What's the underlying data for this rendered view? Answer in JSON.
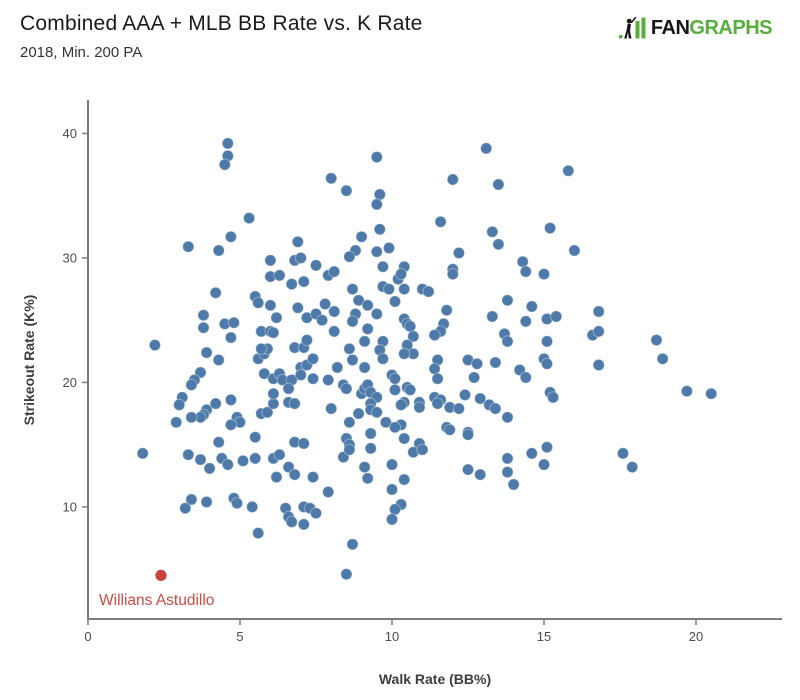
{
  "chart_data": {
    "type": "scatter",
    "title": "Combined AAA + MLB BB Rate vs. K Rate",
    "subtitle": "2018, Min. 200 PA",
    "xlabel": "Walk Rate (BB%)",
    "ylabel": "Strikeout Rate (K%)",
    "xlim": [
      0,
      22.8
    ],
    "ylim": [
      1,
      42.7
    ],
    "x_ticks": [
      0,
      5,
      10,
      15,
      20
    ],
    "y_ticks": [
      10,
      20,
      30,
      40
    ],
    "grid": false,
    "legend": "none",
    "point_color": "#4d7aa8",
    "point_edge": "rgba(255,255,255,0.35)",
    "axis_color": "#7d7d7d",
    "tick_label_color": "#4d4d4d",
    "highlight": {
      "label": "Willians Astudillo",
      "x": 2.4,
      "y": 4.5,
      "color": "#c8413a",
      "label_color": "#cd4b45"
    },
    "points": [
      [
        4.6,
        39.2
      ],
      [
        4.6,
        38.2
      ],
      [
        4.5,
        37.5
      ],
      [
        5.3,
        33.2
      ],
      [
        4.7,
        31.7
      ],
      [
        3.3,
        30.9
      ],
      [
        4.3,
        30.6
      ],
      [
        6.9,
        31.3
      ],
      [
        6.0,
        29.8
      ],
      [
        6.8,
        29.8
      ],
      [
        7.0,
        30.0
      ],
      [
        13.1,
        38.8
      ],
      [
        9.5,
        38.1
      ],
      [
        8.0,
        36.4
      ],
      [
        8.5,
        35.4
      ],
      [
        12.0,
        36.3
      ],
      [
        13.5,
        35.9
      ],
      [
        9.6,
        35.1
      ],
      [
        9.5,
        34.3
      ],
      [
        11.6,
        32.9
      ],
      [
        9.6,
        32.3
      ],
      [
        9.0,
        31.7
      ],
      [
        13.3,
        32.1
      ],
      [
        13.5,
        31.1
      ],
      [
        8.8,
        30.6
      ],
      [
        8.6,
        30.1
      ],
      [
        9.5,
        30.5
      ],
      [
        9.9,
        30.8
      ],
      [
        7.5,
        29.4
      ],
      [
        12.2,
        30.4
      ],
      [
        14.3,
        29.7
      ],
      [
        9.7,
        29.3
      ],
      [
        10.4,
        29.3
      ],
      [
        12.0,
        29.1
      ],
      [
        15.8,
        37.0
      ],
      [
        15.2,
        32.4
      ],
      [
        16.0,
        30.6
      ],
      [
        4.2,
        27.2
      ],
      [
        5.5,
        26.9
      ],
      [
        5.6,
        26.4
      ],
      [
        6.0,
        28.5
      ],
      [
        6.3,
        28.6
      ],
      [
        6.7,
        27.9
      ],
      [
        7.1,
        28.1
      ],
      [
        6.0,
        26.2
      ],
      [
        6.9,
        26.0
      ],
      [
        7.2,
        25.2
      ],
      [
        3.8,
        25.4
      ],
      [
        3.8,
        24.4
      ],
      [
        4.5,
        24.7
      ],
      [
        4.8,
        24.8
      ],
      [
        4.7,
        23.6
      ],
      [
        2.2,
        23.0
      ],
      [
        3.9,
        22.4
      ],
      [
        4.3,
        21.8
      ],
      [
        3.7,
        20.8
      ],
      [
        3.5,
        20.2
      ],
      [
        3.4,
        19.8
      ],
      [
        3.1,
        18.8
      ],
      [
        3.0,
        18.2
      ],
      [
        3.9,
        17.8
      ],
      [
        3.8,
        17.4
      ],
      [
        4.2,
        18.3
      ],
      [
        3.7,
        17.2
      ],
      [
        3.4,
        17.2
      ],
      [
        2.9,
        16.8
      ],
      [
        4.7,
        18.6
      ],
      [
        4.9,
        17.2
      ],
      [
        5.0,
        16.8
      ],
      [
        4.7,
        16.6
      ],
      [
        5.7,
        17.5
      ],
      [
        5.9,
        17.6
      ],
      [
        6.1,
        18.3
      ],
      [
        6.6,
        18.4
      ],
      [
        6.8,
        18.3
      ],
      [
        5.8,
        20.7
      ],
      [
        6.1,
        20.3
      ],
      [
        6.3,
        20.7
      ],
      [
        6.4,
        20.2
      ],
      [
        6.7,
        20.2
      ],
      [
        7.0,
        21.2
      ],
      [
        7.2,
        21.4
      ],
      [
        7.0,
        20.6
      ],
      [
        6.1,
        19.1
      ],
      [
        6.6,
        19.5
      ],
      [
        5.6,
        21.9
      ],
      [
        5.8,
        22.3
      ],
      [
        5.9,
        22.7
      ],
      [
        5.7,
        22.7
      ],
      [
        5.7,
        24.1
      ],
      [
        6.0,
        24.1
      ],
      [
        6.1,
        24.0
      ],
      [
        6.2,
        25.2
      ],
      [
        6.8,
        22.8
      ],
      [
        7.1,
        22.8
      ],
      [
        7.2,
        23.4
      ],
      [
        7.4,
        21.9
      ],
      [
        7.4,
        20.3
      ],
      [
        5.5,
        15.6
      ],
      [
        4.3,
        15.2
      ],
      [
        7.9,
        28.6
      ],
      [
        8.1,
        28.9
      ],
      [
        10.2,
        28.3
      ],
      [
        10.3,
        28.7
      ],
      [
        12.0,
        28.7
      ],
      [
        14.4,
        28.9
      ],
      [
        15.0,
        28.7
      ],
      [
        8.7,
        27.5
      ],
      [
        9.7,
        27.7
      ],
      [
        9.9,
        27.5
      ],
      [
        10.4,
        27.5
      ],
      [
        11.0,
        27.5
      ],
      [
        11.2,
        27.3
      ],
      [
        7.8,
        26.3
      ],
      [
        7.5,
        25.5
      ],
      [
        8.1,
        25.7
      ],
      [
        8.9,
        26.6
      ],
      [
        9.2,
        26.2
      ],
      [
        9.5,
        25.5
      ],
      [
        10.1,
        26.5
      ],
      [
        8.8,
        25.5
      ],
      [
        13.8,
        26.6
      ],
      [
        14.6,
        26.1
      ],
      [
        13.3,
        25.3
      ],
      [
        14.4,
        24.9
      ],
      [
        7.7,
        25.0
      ],
      [
        8.1,
        24.1
      ],
      [
        8.7,
        24.9
      ],
      [
        9.2,
        24.3
      ],
      [
        10.4,
        25.1
      ],
      [
        10.5,
        24.7
      ],
      [
        10.6,
        24.5
      ],
      [
        11.8,
        25.8
      ],
      [
        11.7,
        24.7
      ],
      [
        11.6,
        24.1
      ],
      [
        11.4,
        23.8
      ],
      [
        10.7,
        23.7
      ],
      [
        13.7,
        23.9
      ],
      [
        13.8,
        23.3
      ],
      [
        8.6,
        22.7
      ],
      [
        9.1,
        23.3
      ],
      [
        9.7,
        23.3
      ],
      [
        9.6,
        22.6
      ],
      [
        9.7,
        21.9
      ],
      [
        10.5,
        23.0
      ],
      [
        10.7,
        22.3
      ],
      [
        10.4,
        22.3
      ],
      [
        8.7,
        21.8
      ],
      [
        8.2,
        21.2
      ],
      [
        9.1,
        21.2
      ],
      [
        10.0,
        20.6
      ],
      [
        10.1,
        20.3
      ],
      [
        11.5,
        21.8
      ],
      [
        11.4,
        21.1
      ],
      [
        11.5,
        20.3
      ],
      [
        12.5,
        21.8
      ],
      [
        12.8,
        21.5
      ],
      [
        12.7,
        20.4
      ],
      [
        13.4,
        21.6
      ],
      [
        14.2,
        21.0
      ],
      [
        14.4,
        20.4
      ],
      [
        15.0,
        21.9
      ],
      [
        7.9,
        20.2
      ],
      [
        8.4,
        19.8
      ],
      [
        8.5,
        19.5
      ],
      [
        9.0,
        19.1
      ],
      [
        9.1,
        19.5
      ],
      [
        9.2,
        19.8
      ],
      [
        9.3,
        19.2
      ],
      [
        9.5,
        18.8
      ],
      [
        10.1,
        19.4
      ],
      [
        10.5,
        19.6
      ],
      [
        10.6,
        19.4
      ],
      [
        10.4,
        18.4
      ],
      [
        10.3,
        18.2
      ],
      [
        10.9,
        18.4
      ],
      [
        11.4,
        18.8
      ],
      [
        11.6,
        18.6
      ],
      [
        12.4,
        19.0
      ],
      [
        12.9,
        18.7
      ],
      [
        13.2,
        18.2
      ],
      [
        8.0,
        17.9
      ],
      [
        8.6,
        16.8
      ],
      [
        8.9,
        17.5
      ],
      [
        9.3,
        18.3
      ],
      [
        9.3,
        17.8
      ],
      [
        9.5,
        17.6
      ],
      [
        9.8,
        16.8
      ],
      [
        10.3,
        16.6
      ],
      [
        10.9,
        18.0
      ],
      [
        11.5,
        18.3
      ],
      [
        11.9,
        18.0
      ],
      [
        12.2,
        17.9
      ],
      [
        12.5,
        16.0
      ],
      [
        13.4,
        17.9
      ],
      [
        13.8,
        17.2
      ],
      [
        8.5,
        15.5
      ],
      [
        9.3,
        15.9
      ],
      [
        10.1,
        16.4
      ],
      [
        10.4,
        15.5
      ],
      [
        10.9,
        15.1
      ],
      [
        11.8,
        16.4
      ],
      [
        11.9,
        16.2
      ],
      [
        12.5,
        15.8
      ],
      [
        8.6,
        15.0
      ],
      [
        15.1,
        25.1
      ],
      [
        15.4,
        25.3
      ],
      [
        16.8,
        25.7
      ],
      [
        16.6,
        23.8
      ],
      [
        16.8,
        24.1
      ],
      [
        15.1,
        23.3
      ],
      [
        18.7,
        23.4
      ],
      [
        18.9,
        21.9
      ],
      [
        15.1,
        21.5
      ],
      [
        16.8,
        21.4
      ],
      [
        15.2,
        19.2
      ],
      [
        15.3,
        18.8
      ],
      [
        19.7,
        19.3
      ],
      [
        20.5,
        19.1
      ],
      [
        1.8,
        14.3
      ],
      [
        3.3,
        14.2
      ],
      [
        3.7,
        13.8
      ],
      [
        4.0,
        13.1
      ],
      [
        4.4,
        13.9
      ],
      [
        4.6,
        13.4
      ],
      [
        5.1,
        13.7
      ],
      [
        5.5,
        13.9
      ],
      [
        6.1,
        13.9
      ],
      [
        6.3,
        14.2
      ],
      [
        6.2,
        12.4
      ],
      [
        6.6,
        13.2
      ],
      [
        6.8,
        12.6
      ],
      [
        7.4,
        12.4
      ],
      [
        3.4,
        10.6
      ],
      [
        3.2,
        9.9
      ],
      [
        3.9,
        10.4
      ],
      [
        4.8,
        10.7
      ],
      [
        4.9,
        10.3
      ],
      [
        5.4,
        10.0
      ],
      [
        6.5,
        9.9
      ],
      [
        6.6,
        9.2
      ],
      [
        7.1,
        10.0
      ],
      [
        7.3,
        9.9
      ],
      [
        6.7,
        8.8
      ],
      [
        7.1,
        8.6
      ],
      [
        5.6,
        7.9
      ],
      [
        6.8,
        15.2
      ],
      [
        7.1,
        15.1
      ],
      [
        8.4,
        14.0
      ],
      [
        8.6,
        14.6
      ],
      [
        9.3,
        14.7
      ],
      [
        9.1,
        13.2
      ],
      [
        9.2,
        12.3
      ],
      [
        10.0,
        13.4
      ],
      [
        10.4,
        12.2
      ],
      [
        10.0,
        11.4
      ],
      [
        10.7,
        14.4
      ],
      [
        11.0,
        14.6
      ],
      [
        7.9,
        11.2
      ],
      [
        7.5,
        9.5
      ],
      [
        10.3,
        10.2
      ],
      [
        10.1,
        9.8
      ],
      [
        10.0,
        9.0
      ],
      [
        8.7,
        7.0
      ],
      [
        8.5,
        4.6
      ],
      [
        12.5,
        13.0
      ],
      [
        12.9,
        12.6
      ],
      [
        13.8,
        13.9
      ],
      [
        13.8,
        12.8
      ],
      [
        14.0,
        11.8
      ],
      [
        14.6,
        14.3
      ],
      [
        15.0,
        13.4
      ],
      [
        17.6,
        14.3
      ],
      [
        17.9,
        13.2
      ],
      [
        15.1,
        14.8
      ]
    ]
  },
  "logo": {
    "fan": "FAN",
    "graphs": "GRAPHS",
    "green": "#55b03b",
    "black": "#161616"
  }
}
